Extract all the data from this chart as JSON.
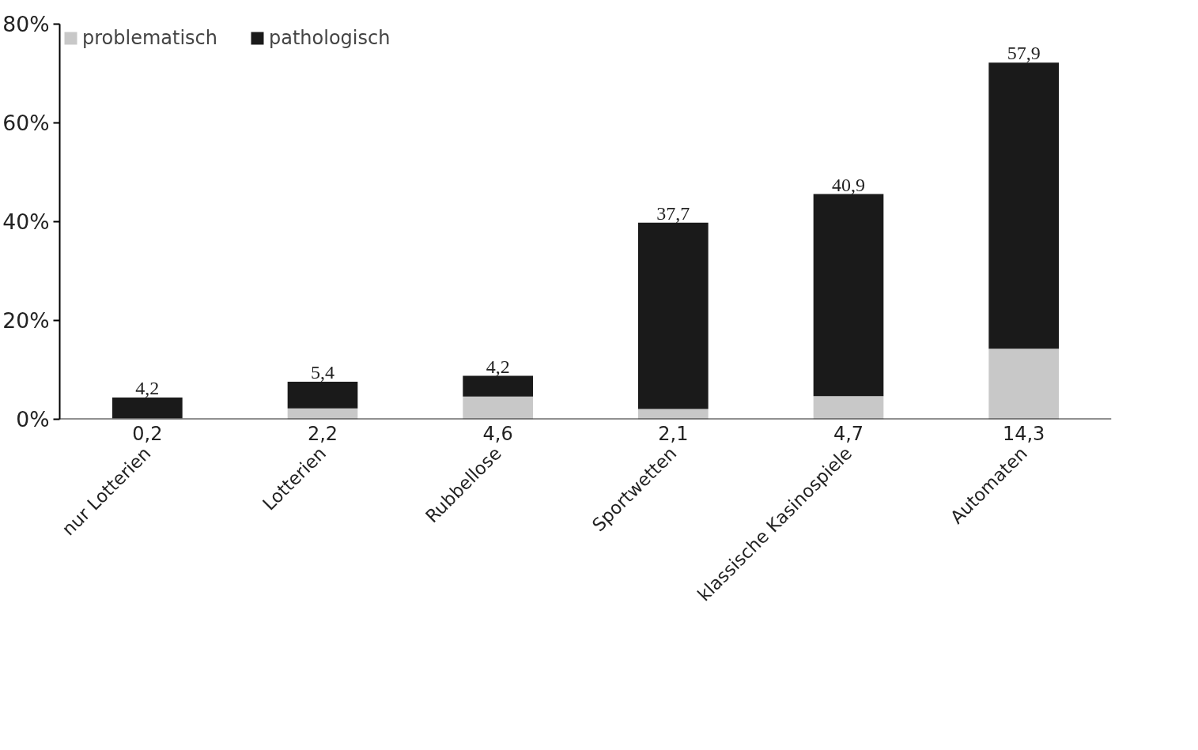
{
  "chart_data": {
    "type": "bar",
    "stacked": true,
    "categories": [
      "nur Lotterien",
      "Lotterien",
      "Rubbellose",
      "Sportwetten",
      "klassische Kasinospiele",
      "Automaten"
    ],
    "series": [
      {
        "name": "problematisch",
        "color": "#c8c8c8",
        "values": [
          0.2,
          2.2,
          4.6,
          2.1,
          4.7,
          14.3
        ],
        "value_labels": [
          "0,2",
          "2,2",
          "4,6",
          "2,1",
          "4,7",
          "14,3"
        ]
      },
      {
        "name": "pathologisch",
        "color": "#1a1a1a",
        "values": [
          4.2,
          5.4,
          4.2,
          37.7,
          40.9,
          57.9
        ],
        "value_labels": [
          "4,2",
          "5,4",
          "4,2",
          "37,7",
          "40,9",
          "57,9"
        ]
      }
    ],
    "ylim": [
      0,
      80
    ],
    "yticks": [
      {
        "value": 0,
        "label": "0%"
      },
      {
        "value": 20,
        "label": "20%"
      },
      {
        "value": 40,
        "label": "40%"
      },
      {
        "value": 60,
        "label": "60%"
      },
      {
        "value": 80,
        "label": "80%"
      }
    ],
    "grid": false,
    "legend": "top left"
  }
}
